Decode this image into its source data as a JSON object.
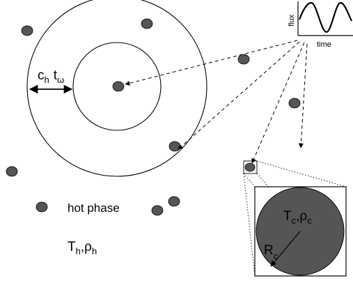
{
  "inset_plot": {
    "ylabel": "flux",
    "xlabel": "time"
  },
  "labels": {
    "speed_main": "c",
    "speed_sub": "h",
    "time_main": "t",
    "time_sub": "ω",
    "legend_text": "hot phase",
    "hot_T_main": "T",
    "hot_T_sub": "h",
    "hot_sep": ",",
    "hot_rho_main": "ρ",
    "hot_rho_sub": "h",
    "cold_T_main": "T",
    "cold_T_sub": "c",
    "cold_sep": ",",
    "cold_rho_main": "ρ",
    "cold_rho_sub": "c",
    "radius_main": "R",
    "radius_sub": "c"
  },
  "colors": {
    "cloud_fill": "#555555",
    "line": "#000000",
    "background": "#ffffff"
  }
}
